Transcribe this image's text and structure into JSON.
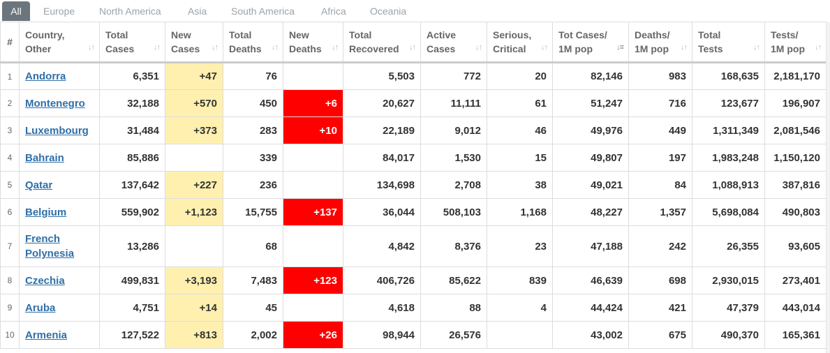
{
  "tabs": [
    {
      "label": "All",
      "active": true
    },
    {
      "label": "Europe",
      "active": false
    },
    {
      "label": "North America",
      "active": false
    },
    {
      "label": "Asia",
      "active": false
    },
    {
      "label": "South America",
      "active": false
    },
    {
      "label": "Africa",
      "active": false
    },
    {
      "label": "Oceania",
      "active": false
    }
  ],
  "headers": [
    {
      "top": "",
      "bottom": "#"
    },
    {
      "top": "Country,",
      "bottom": "Other"
    },
    {
      "top": "Total",
      "bottom": "Cases"
    },
    {
      "top": "New",
      "bottom": "Cases"
    },
    {
      "top": "Total",
      "bottom": "Deaths"
    },
    {
      "top": "New",
      "bottom": "Deaths"
    },
    {
      "top": "Total",
      "bottom": "Recovered"
    },
    {
      "top": "Active",
      "bottom": "Cases"
    },
    {
      "top": "Serious,",
      "bottom": "Critical"
    },
    {
      "top": "Tot Cases/",
      "bottom": "1M pop"
    },
    {
      "top": "Deaths/",
      "bottom": "1M pop"
    },
    {
      "top": "Total",
      "bottom": "Tests"
    },
    {
      "top": "Tests/",
      "bottom": "1M pop"
    }
  ],
  "sort_icon": "sort-arrows-icon",
  "active_sort_icon": "sort-desc-icon",
  "highlight_colors": {
    "new_cases": "#fff0b0",
    "new_deaths": "#ff0000"
  },
  "rows": [
    {
      "idx": "1",
      "country": "Andorra",
      "total_cases": "6,351",
      "new_cases": "+47",
      "total_deaths": "76",
      "new_deaths": "",
      "total_recovered": "5,503",
      "active_cases": "772",
      "serious": "20",
      "cases_per_1m": "82,146",
      "deaths_per_1m": "983",
      "total_tests": "168,635",
      "tests_per_1m": "2,181,170"
    },
    {
      "idx": "2",
      "country": "Montenegro",
      "total_cases": "32,188",
      "new_cases": "+570",
      "total_deaths": "450",
      "new_deaths": "+6",
      "total_recovered": "20,627",
      "active_cases": "11,111",
      "serious": "61",
      "cases_per_1m": "51,247",
      "deaths_per_1m": "716",
      "total_tests": "123,677",
      "tests_per_1m": "196,907"
    },
    {
      "idx": "3",
      "country": "Luxembourg",
      "total_cases": "31,484",
      "new_cases": "+373",
      "total_deaths": "283",
      "new_deaths": "+10",
      "total_recovered": "22,189",
      "active_cases": "9,012",
      "serious": "46",
      "cases_per_1m": "49,976",
      "deaths_per_1m": "449",
      "total_tests": "1,311,349",
      "tests_per_1m": "2,081,546"
    },
    {
      "idx": "4",
      "country": "Bahrain",
      "total_cases": "85,886",
      "new_cases": "",
      "total_deaths": "339",
      "new_deaths": "",
      "total_recovered": "84,017",
      "active_cases": "1,530",
      "serious": "15",
      "cases_per_1m": "49,807",
      "deaths_per_1m": "197",
      "total_tests": "1,983,248",
      "tests_per_1m": "1,150,120"
    },
    {
      "idx": "5",
      "country": "Qatar",
      "total_cases": "137,642",
      "new_cases": "+227",
      "total_deaths": "236",
      "new_deaths": "",
      "total_recovered": "134,698",
      "active_cases": "2,708",
      "serious": "38",
      "cases_per_1m": "49,021",
      "deaths_per_1m": "84",
      "total_tests": "1,088,913",
      "tests_per_1m": "387,816"
    },
    {
      "idx": "6",
      "country": "Belgium",
      "total_cases": "559,902",
      "new_cases": "+1,123",
      "total_deaths": "15,755",
      "new_deaths": "+137",
      "total_recovered": "36,044",
      "active_cases": "508,103",
      "serious": "1,168",
      "cases_per_1m": "48,227",
      "deaths_per_1m": "1,357",
      "total_tests": "5,698,084",
      "tests_per_1m": "490,803"
    },
    {
      "idx": "7",
      "country": "French Polynesia",
      "total_cases": "13,286",
      "new_cases": "",
      "total_deaths": "68",
      "new_deaths": "",
      "total_recovered": "4,842",
      "active_cases": "8,376",
      "serious": "23",
      "cases_per_1m": "47,188",
      "deaths_per_1m": "242",
      "total_tests": "26,355",
      "tests_per_1m": "93,605"
    },
    {
      "idx": "8",
      "country": "Czechia",
      "total_cases": "499,831",
      "new_cases": "+3,193",
      "total_deaths": "7,483",
      "new_deaths": "+123",
      "total_recovered": "406,726",
      "active_cases": "85,622",
      "serious": "839",
      "cases_per_1m": "46,639",
      "deaths_per_1m": "698",
      "total_tests": "2,930,015",
      "tests_per_1m": "273,401"
    },
    {
      "idx": "9",
      "country": "Aruba",
      "total_cases": "4,751",
      "new_cases": "+14",
      "total_deaths": "45",
      "new_deaths": "",
      "total_recovered": "4,618",
      "active_cases": "88",
      "serious": "4",
      "cases_per_1m": "44,424",
      "deaths_per_1m": "421",
      "total_tests": "47,379",
      "tests_per_1m": "443,014"
    },
    {
      "idx": "10",
      "country": "Armenia",
      "total_cases": "127,522",
      "new_cases": "+813",
      "total_deaths": "2,002",
      "new_deaths": "+26",
      "total_recovered": "98,944",
      "active_cases": "26,576",
      "serious": "",
      "cases_per_1m": "43,002",
      "deaths_per_1m": "675",
      "total_tests": "490,370",
      "tests_per_1m": "165,361"
    }
  ]
}
